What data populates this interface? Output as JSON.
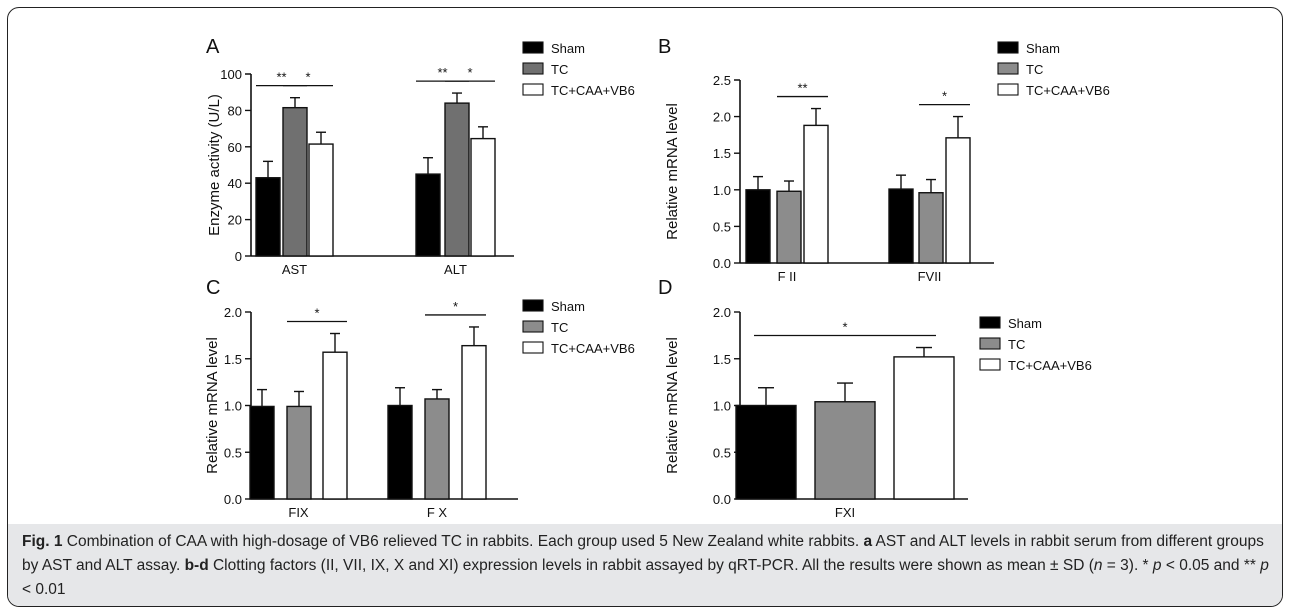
{
  "chart_data": [
    {
      "panel": "A",
      "type": "bar",
      "ylabel": "Enzyme activity (U/L)",
      "xlabel": "",
      "ylim": [
        0,
        100
      ],
      "yticks": [
        "0",
        "20",
        "40",
        "60",
        "80",
        "100"
      ],
      "categories": [
        "AST",
        "ALT"
      ],
      "series": [
        {
          "name": "Sham",
          "color": "#000000",
          "values": [
            43,
            45
          ],
          "errors": [
            9,
            9
          ]
        },
        {
          "name": "TC",
          "color": "#707070",
          "values": [
            81.5,
            84
          ],
          "errors": [
            5.5,
            5.5
          ]
        },
        {
          "name": "TC+CAA+VB6",
          "color": "#ffffff",
          "values": [
            61.5,
            64.5
          ],
          "errors": [
            6.5,
            6.5
          ]
        }
      ],
      "significance": [
        {
          "category": 0,
          "from": 0,
          "to": 1,
          "label": "**"
        },
        {
          "category": 0,
          "from": 1,
          "to": 2,
          "label": "*"
        },
        {
          "category": 1,
          "from": 0,
          "to": 1,
          "label": "**"
        },
        {
          "category": 1,
          "from": 1,
          "to": 2,
          "label": "*"
        }
      ]
    },
    {
      "panel": "B",
      "type": "bar",
      "ylabel": "Relative mRNA level",
      "xlabel": "",
      "ylim": [
        0,
        2.5
      ],
      "yticks": [
        "0.0",
        "0.5",
        "1.0",
        "1.5",
        "2.0",
        "2.5"
      ],
      "categories": [
        "F II",
        "FVII"
      ],
      "series": [
        {
          "name": "Sham",
          "color": "#000000",
          "values": [
            1.0,
            1.01
          ],
          "errors": [
            0.18,
            0.19
          ]
        },
        {
          "name": "TC",
          "color": "#8c8c8c",
          "values": [
            0.98,
            0.96
          ],
          "errors": [
            0.14,
            0.18
          ]
        },
        {
          "name": "TC+CAA+VB6",
          "color": "#ffffff",
          "values": [
            1.88,
            1.71
          ],
          "errors": [
            0.23,
            0.29
          ]
        }
      ],
      "significance": [
        {
          "category": 0,
          "from": 1,
          "to": 2,
          "label": "**"
        },
        {
          "category": 1,
          "from": 1,
          "to": 2,
          "label": "*"
        }
      ]
    },
    {
      "panel": "C",
      "type": "bar",
      "ylabel": "Relative mRNA level",
      "xlabel": "",
      "ylim": [
        0,
        2.0
      ],
      "yticks": [
        "0.0",
        "0.5",
        "1.0",
        "1.5",
        "2.0"
      ],
      "categories": [
        "FIX",
        "F X"
      ],
      "series": [
        {
          "name": "Sham",
          "color": "#000000",
          "values": [
            0.99,
            1.0
          ],
          "errors": [
            0.18,
            0.19
          ]
        },
        {
          "name": "TC",
          "color": "#8c8c8c",
          "values": [
            0.99,
            1.07
          ],
          "errors": [
            0.16,
            0.1
          ]
        },
        {
          "name": "TC+CAA+VB6",
          "color": "#ffffff",
          "values": [
            1.57,
            1.64
          ],
          "errors": [
            0.2,
            0.2
          ]
        }
      ],
      "significance": [
        {
          "category": 0,
          "from": 1,
          "to": 2,
          "label": "*"
        },
        {
          "category": 1,
          "from": 1,
          "to": 2,
          "label": "*"
        }
      ]
    },
    {
      "panel": "D",
      "type": "bar",
      "ylabel": "Relative mRNA level",
      "xlabel": "",
      "ylim": [
        0,
        2.0
      ],
      "yticks": [
        "0.0",
        "0.5",
        "1.0",
        "1.5",
        "2.0"
      ],
      "categories": [
        "FXI"
      ],
      "series": [
        {
          "name": "Sham",
          "color": "#000000",
          "values": [
            1.0
          ],
          "errors": [
            0.19
          ]
        },
        {
          "name": "TC",
          "color": "#8c8c8c",
          "values": [
            1.04
          ],
          "errors": [
            0.2
          ]
        },
        {
          "name": "TC+CAA+VB6",
          "color": "#ffffff",
          "values": [
            1.52
          ],
          "errors": [
            0.1
          ]
        }
      ],
      "significance": [
        {
          "category": 0,
          "from": 0,
          "to": 2,
          "label": "*"
        }
      ]
    }
  ],
  "caption": {
    "fig_label": "Fig. 1",
    "t1": " Combination of CAA with high-dosage of VB6 relieved TC in rabbits. Each group used 5 New Zealand white rabbits. ",
    "a_label": "a",
    "t2": " AST and ALT levels in rabbit serum from different groups by AST and ALT assay. ",
    "bd_label": "b-d",
    "t3": " Clotting factors (II, VII, IX, X and XI) expression levels in rabbit assayed by qRT-PCR. All the results were shown as mean ± SD (",
    "n_var": "n",
    "t4": " = 3). * ",
    "p_var1": "p",
    "t5": " < 0.05 and ** ",
    "p_var2": "p",
    "t6": " < 0.01"
  }
}
